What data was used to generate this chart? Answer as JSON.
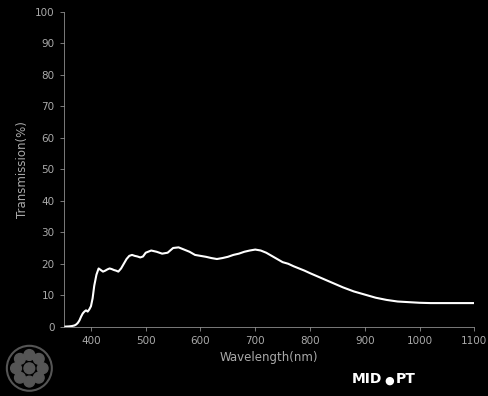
{
  "xlabel": "Wavelength(nm)",
  "ylabel": "Transmission(%)",
  "background_color": "#000000",
  "line_color": "#ffffff",
  "text_color": "#aaaaaa",
  "xlim": [
    350,
    1100
  ],
  "ylim": [
    0,
    100
  ],
  "xticks": [
    400,
    500,
    600,
    700,
    800,
    900,
    1000,
    1100
  ],
  "yticks": [
    0,
    10,
    20,
    30,
    40,
    50,
    60,
    70,
    80,
    90,
    100
  ],
  "wavelengths": [
    350,
    360,
    365,
    370,
    373,
    376,
    379,
    382,
    385,
    388,
    391,
    394,
    397,
    400,
    403,
    406,
    410,
    414,
    418,
    422,
    426,
    430,
    434,
    438,
    442,
    446,
    450,
    455,
    460,
    465,
    470,
    475,
    480,
    485,
    490,
    495,
    500,
    510,
    520,
    530,
    540,
    550,
    560,
    570,
    580,
    590,
    600,
    610,
    620,
    630,
    640,
    650,
    660,
    670,
    680,
    690,
    700,
    710,
    720,
    730,
    740,
    750,
    760,
    770,
    780,
    790,
    800,
    820,
    840,
    860,
    880,
    900,
    920,
    940,
    960,
    980,
    1000,
    1020,
    1040,
    1060,
    1080,
    1100
  ],
  "transmission": [
    0,
    0.1,
    0.2,
    0.4,
    0.7,
    1.2,
    2.0,
    3.2,
    4.2,
    4.8,
    5.2,
    4.8,
    5.5,
    6.5,
    9.0,
    13.0,
    16.5,
    18.5,
    18.0,
    17.5,
    17.8,
    18.2,
    18.5,
    18.3,
    18.0,
    17.8,
    17.5,
    18.5,
    20.0,
    21.5,
    22.5,
    22.8,
    22.5,
    22.3,
    22.0,
    22.3,
    23.5,
    24.2,
    23.8,
    23.2,
    23.5,
    25.0,
    25.2,
    24.5,
    23.8,
    22.8,
    22.5,
    22.2,
    21.8,
    21.5,
    21.8,
    22.2,
    22.8,
    23.2,
    23.8,
    24.2,
    24.5,
    24.2,
    23.5,
    22.5,
    21.5,
    20.5,
    20.0,
    19.2,
    18.5,
    17.8,
    17.0,
    15.5,
    14.0,
    12.5,
    11.2,
    10.2,
    9.2,
    8.5,
    8.0,
    7.8,
    7.6,
    7.5,
    7.5,
    7.5,
    7.5,
    7.5
  ],
  "line_width": 1.5
}
